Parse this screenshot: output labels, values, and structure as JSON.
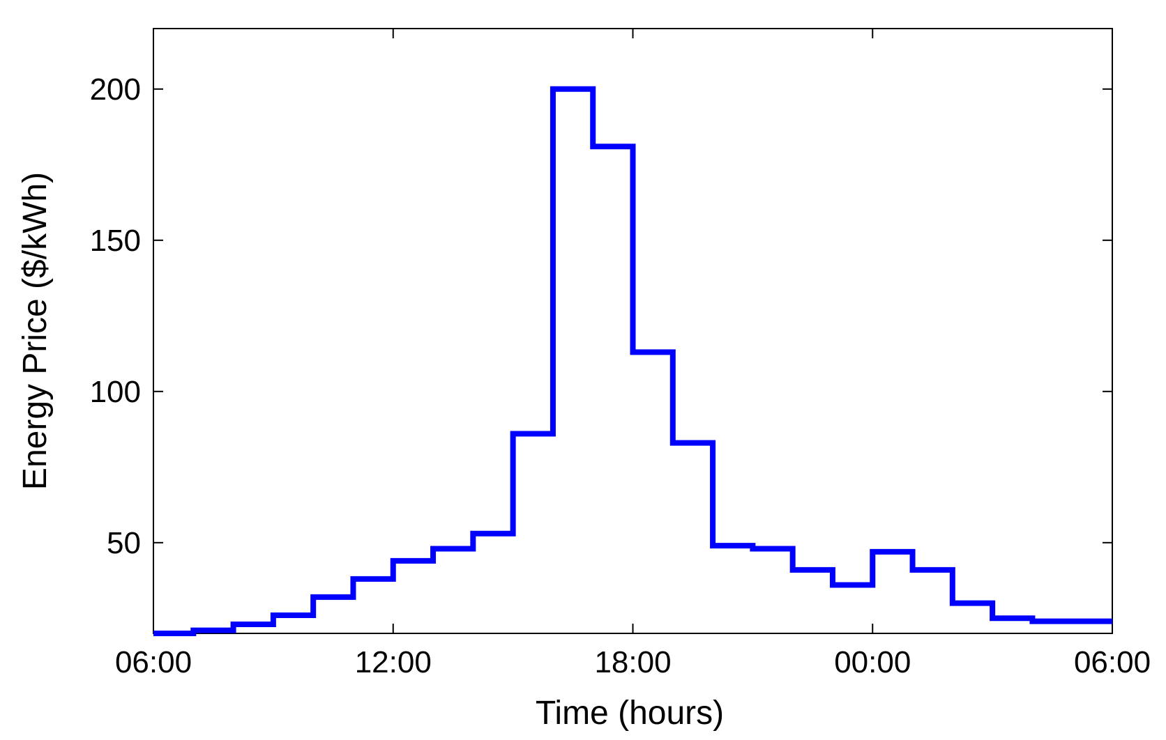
{
  "chart_data": {
    "type": "line",
    "step": true,
    "title": "",
    "xlabel": "Time (hours)",
    "ylabel": "Energy Price ($/kWh)",
    "xlim": [
      "06:00",
      "06:00 (+1 day)"
    ],
    "ylim": [
      20,
      220
    ],
    "x_ticks": [
      "06:00",
      "12:00",
      "18:00",
      "00:00",
      "06:00"
    ],
    "y_ticks": [
      50,
      100,
      150,
      200
    ],
    "grid": false,
    "legend": "none",
    "color": "#0000ff",
    "series": [
      {
        "x": [
          "06:00",
          "07:00",
          "08:00",
          "09:00",
          "10:00",
          "11:00",
          "12:00",
          "13:00",
          "14:00",
          "15:00",
          "16:00",
          "17:00",
          "18:00",
          "19:00",
          "20:00",
          "21:00",
          "22:00",
          "23:00",
          "00:00",
          "01:00",
          "02:00",
          "03:00",
          "04:00",
          "05:00"
        ],
        "values": [
          20,
          21,
          23,
          26,
          32,
          38,
          44,
          48,
          53,
          86,
          200,
          181,
          113,
          83,
          49,
          48,
          41,
          36,
          47,
          41,
          30,
          25,
          24,
          24
        ]
      }
    ]
  }
}
